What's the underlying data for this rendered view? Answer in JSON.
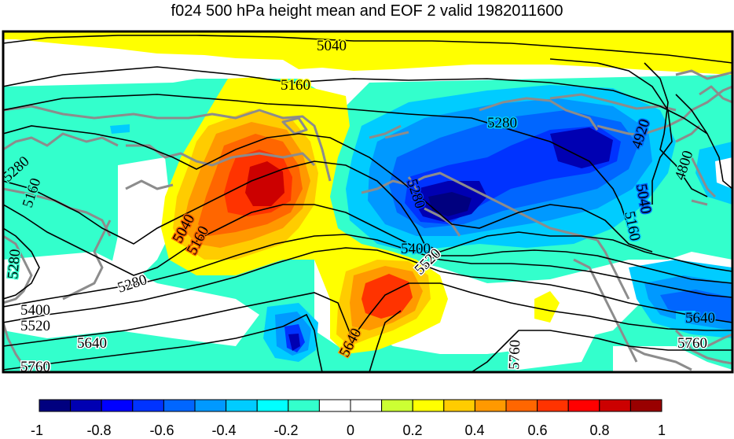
{
  "title": "f024 500 hPa height mean and EOF 2 valid 1982011600",
  "contour_labels": [
    "5040",
    "5160",
    "5280",
    "4920",
    "4800",
    "5280",
    "5160",
    "5280",
    "5040",
    "5160",
    "5280",
    "5400",
    "5520",
    "5640",
    "5760",
    "5280",
    "5400",
    "5520",
    "5640",
    "5760",
    "5040",
    "5160",
    "5640",
    "5760"
  ],
  "colorbar": {
    "colors": [
      "#00007f",
      "#0000b2",
      "#0000ff",
      "#0033ff",
      "#0066ff",
      "#0099ff",
      "#00ccff",
      "#00ffff",
      "#33ffcc",
      "#ffffff",
      "#ffffff",
      "#ccff33",
      "#ffff00",
      "#ffcc00",
      "#ff9900",
      "#ff6600",
      "#ff3300",
      "#ff0000",
      "#cc0000",
      "#990000"
    ],
    "tick_labels": [
      "-1",
      "-0.8",
      "-0.6",
      "-0.4",
      "-0.2",
      "0",
      "0.2",
      "0.4",
      "0.6",
      "0.8",
      "1"
    ]
  }
}
